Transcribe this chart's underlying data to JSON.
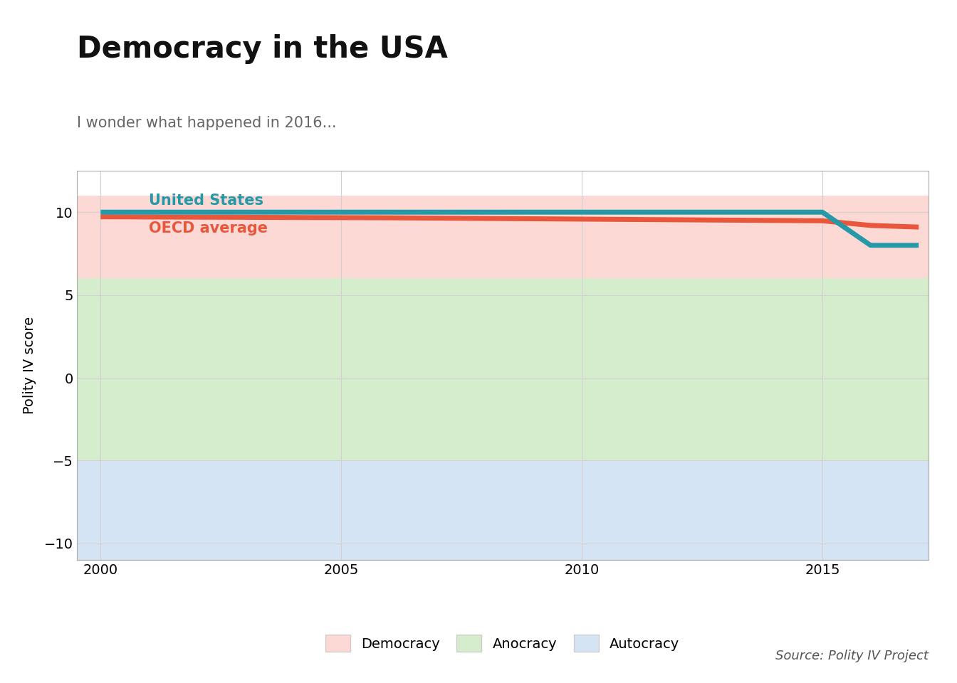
{
  "title": "Democracy in the USA",
  "subtitle": "I wonder what happened in 2016...",
  "ylabel": "Polity IV score",
  "source": "Source: Polity IV Project",
  "ylim": [
    -11,
    12.5
  ],
  "xlim": [
    1999.5,
    2017.2
  ],
  "yticks": [
    -10,
    -5,
    0,
    5,
    10
  ],
  "xticks": [
    2000,
    2005,
    2010,
    2015
  ],
  "us_label": "United States",
  "oecd_label": "OECD average",
  "us_color": "#2599a8",
  "oecd_color": "#e8563c",
  "us_label_color": "#2599a8",
  "oecd_label_color": "#e8563c",
  "democracy_color": "#fcd9d5",
  "anocracy_color": "#d5edcc",
  "autocracy_color": "#d5e4f5",
  "democracy_range": [
    6,
    11
  ],
  "anocracy_range": [
    -5,
    6
  ],
  "autocracy_range": [
    -11,
    -5
  ],
  "us_years": [
    2000,
    2001,
    2002,
    2003,
    2004,
    2005,
    2006,
    2007,
    2008,
    2009,
    2010,
    2011,
    2012,
    2013,
    2014,
    2015,
    2016,
    2017
  ],
  "us_values": [
    10,
    10,
    10,
    10,
    10,
    10,
    10,
    10,
    10,
    10,
    10,
    10,
    10,
    10,
    10,
    10,
    8,
    8
  ],
  "oecd_years": [
    2000,
    2001,
    2002,
    2003,
    2004,
    2005,
    2006,
    2007,
    2008,
    2009,
    2010,
    2011,
    2012,
    2013,
    2014,
    2015,
    2016,
    2017
  ],
  "oecd_values": [
    9.72,
    9.71,
    9.7,
    9.69,
    9.68,
    9.67,
    9.66,
    9.64,
    9.62,
    9.6,
    9.58,
    9.56,
    9.54,
    9.52,
    9.5,
    9.48,
    9.2,
    9.1
  ],
  "line_width": 5,
  "title_fontsize": 30,
  "subtitle_fontsize": 15,
  "label_fontsize": 15,
  "tick_fontsize": 14,
  "legend_fontsize": 14,
  "ylabel_fontsize": 14,
  "source_fontsize": 13,
  "grid_color": "#d0d0d0",
  "bg_color": "#ffffff"
}
